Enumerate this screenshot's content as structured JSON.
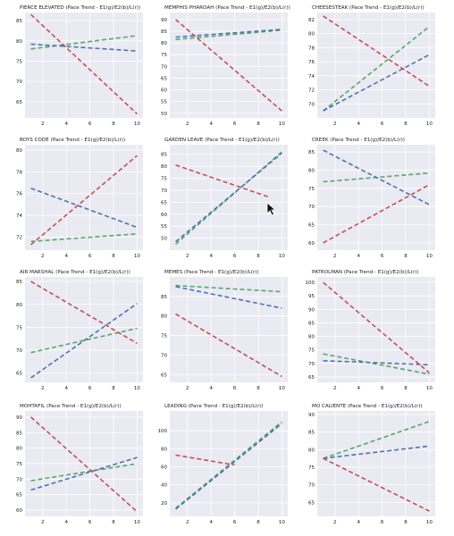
{
  "colors": {
    "panel_bg": "#eaeaf2",
    "grid": "#ffffff",
    "g": "#55a868",
    "b": "#4c72b0",
    "r": "#c44e52",
    "text": "#222222"
  },
  "chart_data": [
    {
      "type": "line",
      "title": "PIERCE ELEVATED (Pace Trend - E1(g)/E2(b)/L(r))",
      "xlim": [
        0.5,
        10.5
      ],
      "ylim": [
        61,
        87
      ],
      "xticks": [
        2,
        4,
        6,
        8,
        10
      ],
      "yticks": [
        65,
        70,
        75,
        80,
        85
      ],
      "series": [
        {
          "color": "g",
          "x": [
            1,
            10
          ],
          "y": [
            78,
            81.3
          ]
        },
        {
          "color": "b",
          "x": [
            1,
            10
          ],
          "y": [
            79.2,
            77.5
          ]
        },
        {
          "color": "r",
          "x": [
            1,
            10
          ],
          "y": [
            86.5,
            62
          ]
        }
      ]
    },
    {
      "type": "line",
      "title": "MEMPHIS PHAROAH (Pace Trend - E1(g)/E2(b)/L(r))",
      "xlim": [
        0.5,
        10.5
      ],
      "ylim": [
        48,
        93
      ],
      "xticks": [
        2,
        4,
        6,
        8,
        10
      ],
      "yticks": [
        50,
        55,
        60,
        65,
        70,
        75,
        80,
        85,
        90
      ],
      "series": [
        {
          "color": "g",
          "x": [
            1,
            10
          ],
          "y": [
            81.5,
            85.5
          ]
        },
        {
          "color": "b",
          "x": [
            1,
            10
          ],
          "y": [
            82.5,
            85.8
          ]
        },
        {
          "color": "r",
          "x": [
            1,
            10
          ],
          "y": [
            90,
            51
          ]
        }
      ]
    },
    {
      "type": "line",
      "title": "CHEESESTEAK (Pace Trend - E1(g)/E2(b)/L(r))",
      "xlim": [
        0.5,
        10.5
      ],
      "ylim": [
        68,
        83
      ],
      "xticks": [
        2,
        4,
        6,
        8,
        10
      ],
      "yticks": [
        70,
        72,
        74,
        76,
        78,
        80,
        82
      ],
      "series": [
        {
          "color": "g",
          "x": [
            1,
            10
          ],
          "y": [
            69,
            81
          ]
        },
        {
          "color": "b",
          "x": [
            1,
            10
          ],
          "y": [
            69,
            77
          ]
        },
        {
          "color": "r",
          "x": [
            1,
            10
          ],
          "y": [
            82.5,
            72.5
          ]
        }
      ]
    },
    {
      "type": "line",
      "title": "BOYS CODE (Pace Trend - E1(g)/E2(b)/L(r))",
      "xlim": [
        0.5,
        10.5
      ],
      "ylim": [
        70.8,
        80.5
      ],
      "xticks": [
        2,
        4,
        6,
        8,
        10
      ],
      "yticks": [
        72,
        74,
        76,
        78,
        80
      ],
      "series": [
        {
          "color": "g",
          "x": [
            1,
            10
          ],
          "y": [
            71.6,
            72.3
          ]
        },
        {
          "color": "b",
          "x": [
            1,
            10
          ],
          "y": [
            76.5,
            72.9
          ]
        },
        {
          "color": "r",
          "x": [
            1,
            10
          ],
          "y": [
            71.3,
            79.5
          ]
        }
      ]
    },
    {
      "type": "line",
      "title": "GARDEN LEAVE (Pace Trend - E1(g)/E2(b)/L(r))",
      "xlim": [
        0.5,
        10.5
      ],
      "ylim": [
        45,
        89
      ],
      "xticks": [
        2,
        4,
        6,
        8,
        10
      ],
      "yticks": [
        50,
        55,
        60,
        65,
        70,
        75,
        80,
        85
      ],
      "series": [
        {
          "color": "g",
          "x": [
            1,
            10
          ],
          "y": [
            47.5,
            86
          ]
        },
        {
          "color": "b",
          "x": [
            1,
            10
          ],
          "y": [
            48.5,
            85.5
          ]
        },
        {
          "color": "r",
          "x": [
            1,
            9
          ],
          "y": [
            80.5,
            67
          ]
        }
      ]
    },
    {
      "type": "line",
      "title": "CREEK (Pace Trend - E1(g)/E2(b)/L(r))",
      "xlim": [
        0.5,
        10.5
      ],
      "ylim": [
        58,
        87
      ],
      "xticks": [
        2,
        4,
        6,
        8,
        10
      ],
      "yticks": [
        60,
        65,
        70,
        75,
        80,
        85
      ],
      "series": [
        {
          "color": "g",
          "x": [
            1,
            10
          ],
          "y": [
            76.8,
            79.2
          ]
        },
        {
          "color": "b",
          "x": [
            1,
            10
          ],
          "y": [
            85.5,
            70.5
          ]
        },
        {
          "color": "r",
          "x": [
            1,
            10
          ],
          "y": [
            60,
            76
          ]
        }
      ]
    },
    {
      "type": "line",
      "title": "AIR MARSHAL (Pace Trend - E1(g)/E2(b)/L(r))",
      "xlim": [
        0.5,
        10.5
      ],
      "ylim": [
        63,
        86
      ],
      "xticks": [
        2,
        4,
        6,
        8,
        10
      ],
      "yticks": [
        65,
        70,
        75,
        80,
        85
      ],
      "series": [
        {
          "color": "g",
          "x": [
            1,
            10
          ],
          "y": [
            69.5,
            74.8
          ]
        },
        {
          "color": "b",
          "x": [
            1,
            10
          ],
          "y": [
            64,
            80.2
          ]
        },
        {
          "color": "r",
          "x": [
            1,
            10
          ],
          "y": [
            85,
            71.5
          ]
        }
      ]
    },
    {
      "type": "line",
      "title": "MEMES (Pace Trend - E1(g)/E2(b)/L(r))",
      "xlim": [
        0.5,
        10.5
      ],
      "ylim": [
        63,
        90
      ],
      "xticks": [
        2,
        4,
        6,
        8,
        10
      ],
      "yticks": [
        65,
        70,
        75,
        80,
        85
      ],
      "series": [
        {
          "color": "g",
          "x": [
            1,
            10
          ],
          "y": [
            87.8,
            86.2
          ]
        },
        {
          "color": "b",
          "x": [
            1,
            10
          ],
          "y": [
            87.5,
            82
          ]
        },
        {
          "color": "r",
          "x": [
            1,
            10
          ],
          "y": [
            80.5,
            64.5
          ]
        }
      ]
    },
    {
      "type": "line",
      "title": "PATROLMAN (Pace Trend - E1(g)/E2(b)/L(r))",
      "xlim": [
        0.5,
        10.5
      ],
      "ylim": [
        63,
        102
      ],
      "xticks": [
        2,
        4,
        6,
        8,
        10
      ],
      "yticks": [
        65,
        70,
        75,
        80,
        85,
        90,
        95,
        100
      ],
      "series": [
        {
          "color": "g",
          "x": [
            1,
            10
          ],
          "y": [
            73.5,
            66
          ]
        },
        {
          "color": "b",
          "x": [
            1,
            10
          ],
          "y": [
            71,
            69.5
          ]
        },
        {
          "color": "r",
          "x": [
            1,
            10
          ],
          "y": [
            100,
            66.5
          ]
        }
      ]
    },
    {
      "type": "line",
      "title": "MOHTAFIL (Pace Trend - E1(g)/E2(b)/L(r))",
      "xlim": [
        0.5,
        10.5
      ],
      "ylim": [
        58,
        92
      ],
      "xticks": [
        2,
        4,
        6,
        8,
        10
      ],
      "yticks": [
        60,
        65,
        70,
        75,
        80,
        85,
        90
      ],
      "series": [
        {
          "color": "g",
          "x": [
            1,
            10
          ],
          "y": [
            69.5,
            75
          ]
        },
        {
          "color": "b",
          "x": [
            1,
            10
          ],
          "y": [
            66.5,
            77
          ]
        },
        {
          "color": "r",
          "x": [
            1,
            10
          ],
          "y": [
            90,
            59.5
          ]
        }
      ]
    },
    {
      "type": "line",
      "title": "LEADING (Pace Trend - E1(g)/E2(b)/L(r))",
      "xlim": [
        0.5,
        10.5
      ],
      "ylim": [
        5,
        122
      ],
      "xticks": [
        2,
        4,
        6,
        8,
        10
      ],
      "yticks": [
        20,
        40,
        60,
        80,
        100
      ],
      "series": [
        {
          "color": "g",
          "x": [
            1,
            10
          ],
          "y": [
            14,
            110
          ]
        },
        {
          "color": "b",
          "x": [
            1,
            10
          ],
          "y": [
            13,
            108
          ]
        },
        {
          "color": "r",
          "x": [
            1,
            6
          ],
          "y": [
            73,
            62
          ]
        }
      ]
    },
    {
      "type": "line",
      "title": "MO CALIENTE (Pace Trend - E1(g)/E2(b)/L(r))",
      "xlim": [
        0.5,
        10.5
      ],
      "ylim": [
        61,
        91
      ],
      "xticks": [
        2,
        4,
        6,
        8,
        10
      ],
      "yticks": [
        65,
        70,
        75,
        80,
        85,
        90
      ],
      "series": [
        {
          "color": "g",
          "x": [
            1,
            10
          ],
          "y": [
            77.5,
            88
          ]
        },
        {
          "color": "b",
          "x": [
            1,
            10
          ],
          "y": [
            77.5,
            81
          ]
        },
        {
          "color": "r",
          "x": [
            1,
            10
          ],
          "y": [
            77.5,
            62.5
          ]
        }
      ]
    }
  ]
}
